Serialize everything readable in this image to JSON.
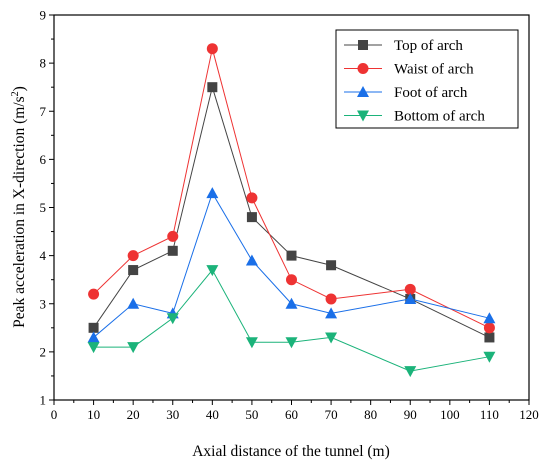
{
  "chart_data": {
    "type": "line",
    "title": "",
    "xlabel": "Axial distance of the tunnel (m)",
    "ylabel_main": "Peak acceleration in X-direction (m/s",
    "ylabel_sup": "2",
    "ylabel_end": ")",
    "xlim": [
      0,
      120
    ],
    "ylim": [
      1,
      9
    ],
    "xticks": [
      0,
      10,
      20,
      30,
      40,
      50,
      60,
      70,
      80,
      90,
      100,
      110,
      120
    ],
    "yticks": [
      1,
      2,
      3,
      4,
      5,
      6,
      7,
      8,
      9
    ],
    "grid": false,
    "legend_position": "top-right",
    "x": [
      10,
      20,
      30,
      40,
      50,
      60,
      70,
      90,
      110
    ],
    "series": [
      {
        "name": "Top of arch",
        "values": [
          2.5,
          3.7,
          4.1,
          7.5,
          4.8,
          4.0,
          3.8,
          3.1,
          2.3
        ],
        "color": "#444444",
        "marker": "square"
      },
      {
        "name": "Waist of arch",
        "values": [
          3.2,
          4.0,
          4.4,
          8.3,
          5.2,
          3.5,
          3.1,
          3.3,
          2.5
        ],
        "color": "#ee3333",
        "marker": "circle"
      },
      {
        "name": "Foot of arch",
        "values": [
          2.3,
          3.0,
          2.8,
          5.3,
          3.9,
          3.0,
          2.8,
          3.1,
          2.7
        ],
        "color": "#1a6fe8",
        "marker": "triangle-up"
      },
      {
        "name": "Bottom of arch",
        "values": [
          2.1,
          2.1,
          2.7,
          3.7,
          2.2,
          2.2,
          2.3,
          1.6,
          1.9
        ],
        "color": "#1bb37a",
        "marker": "triangle-down"
      }
    ]
  }
}
